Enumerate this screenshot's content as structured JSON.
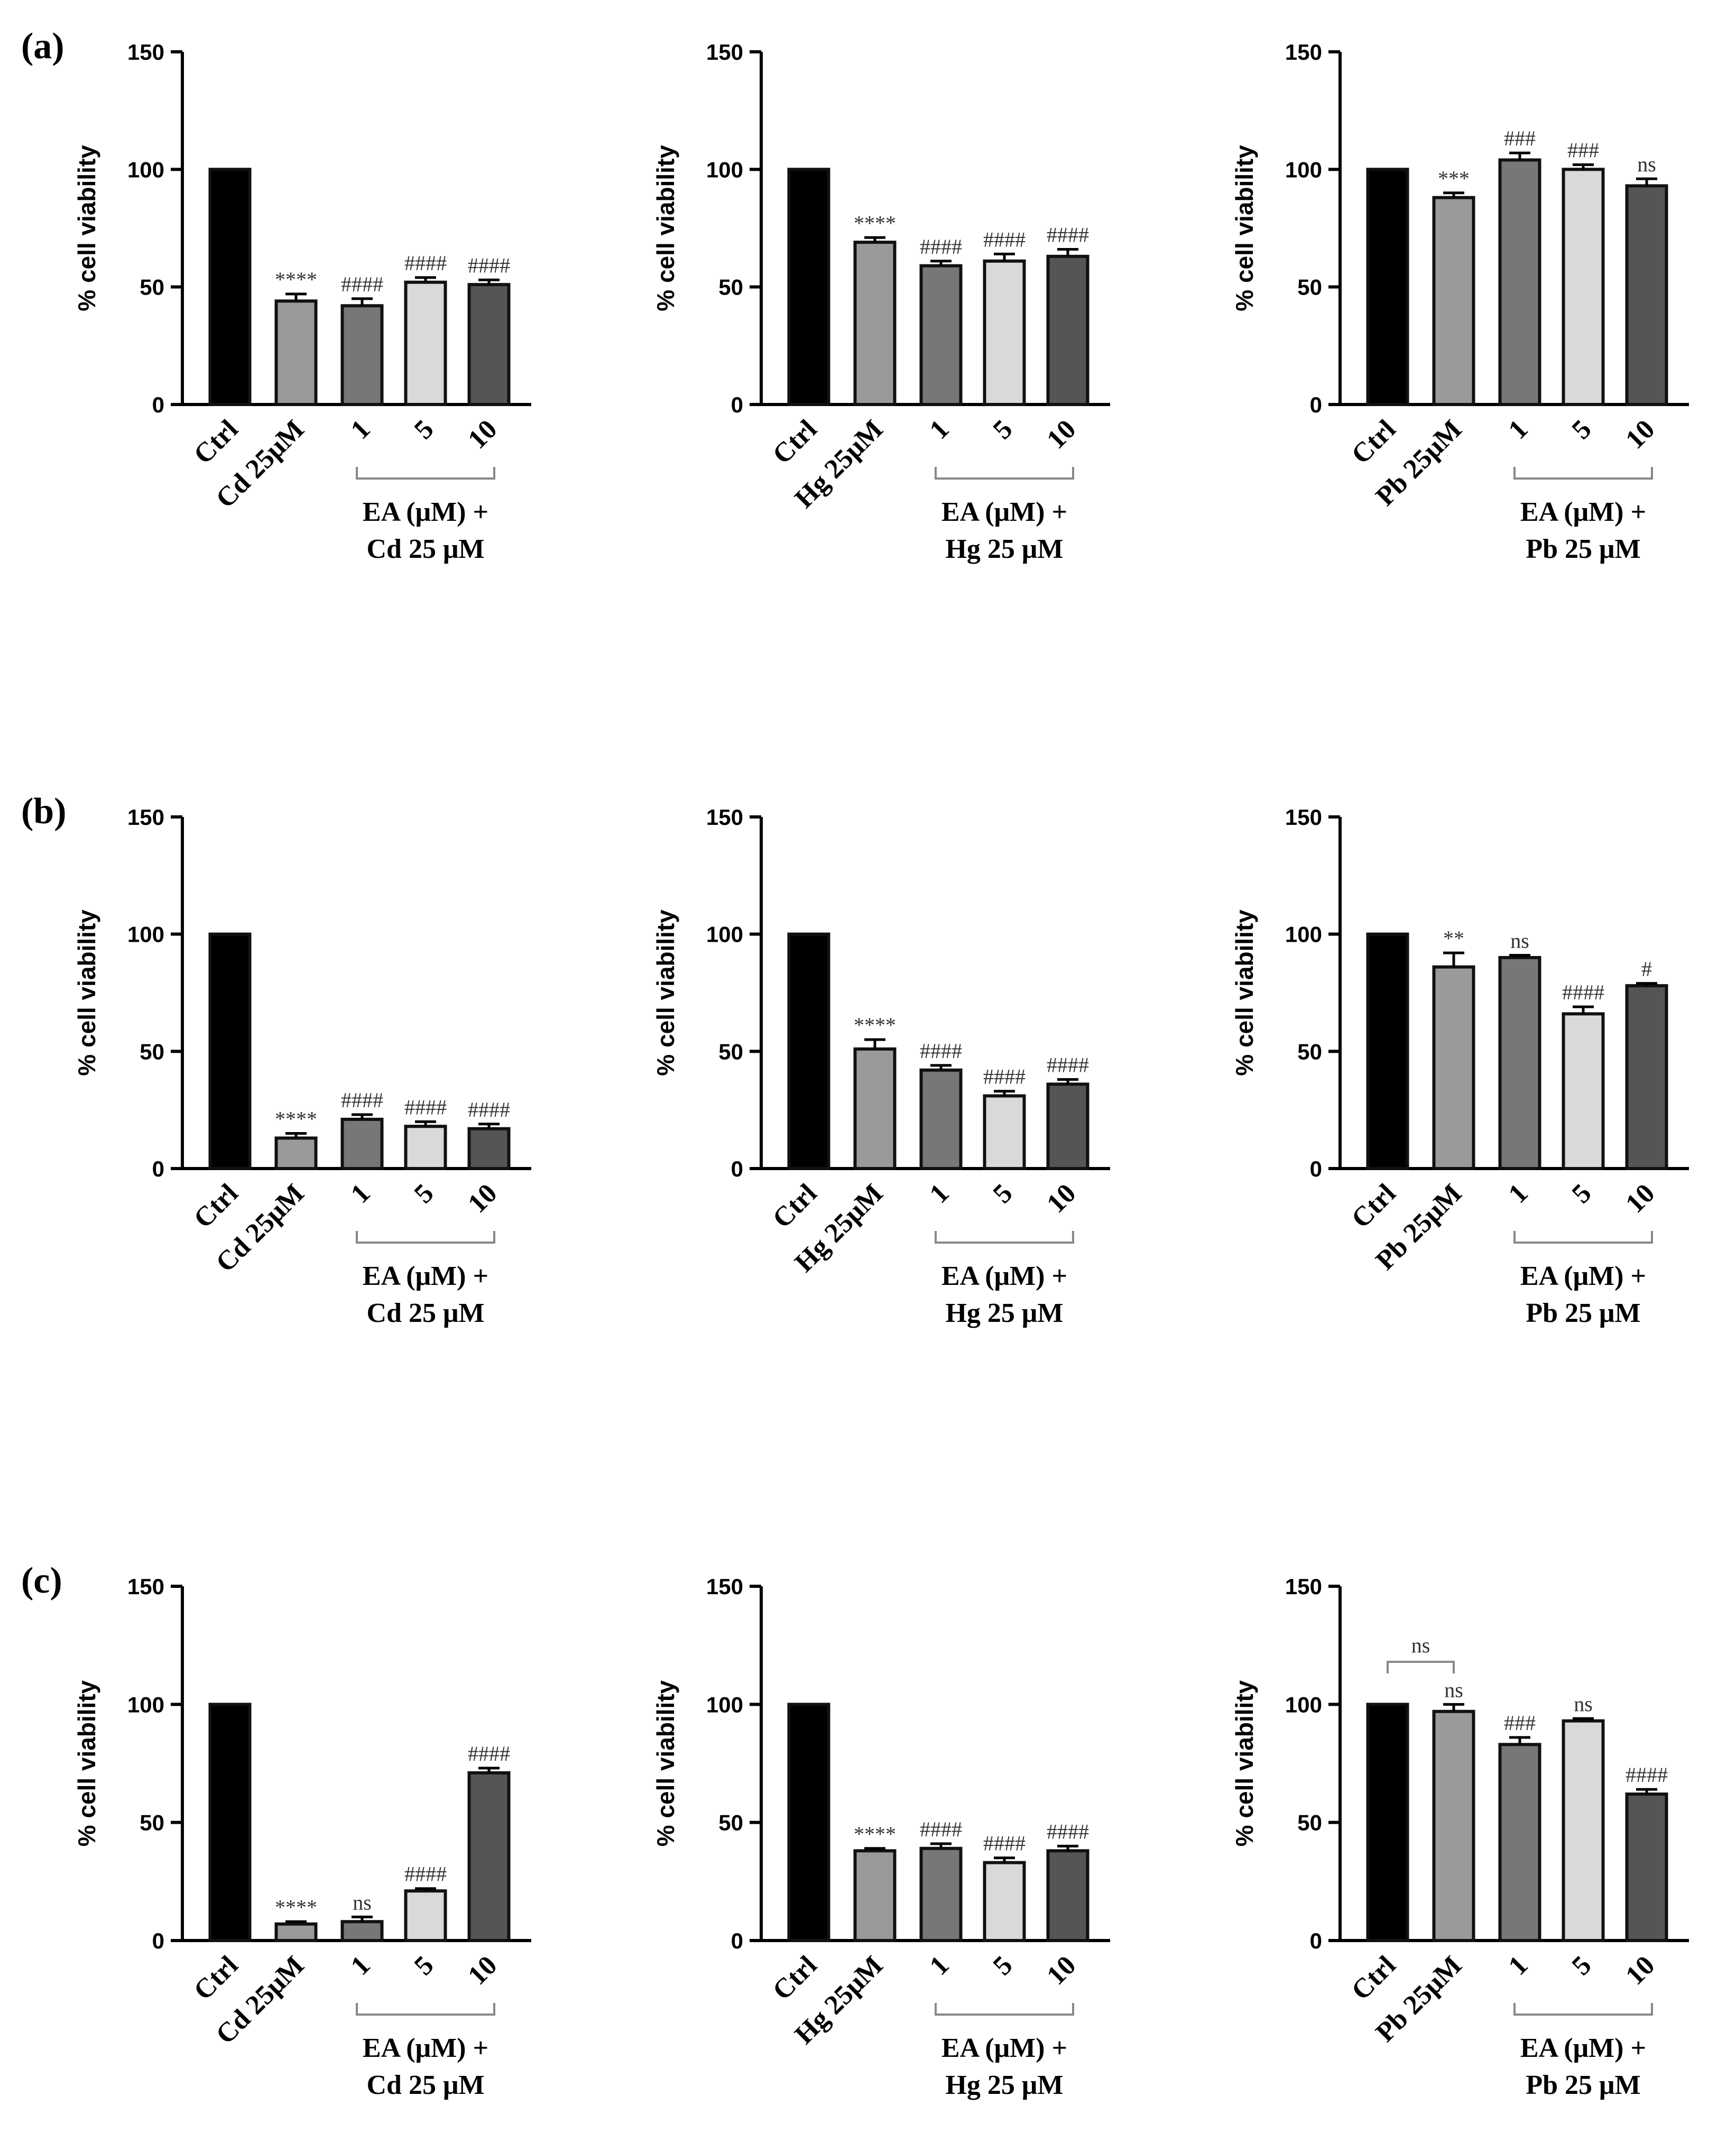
{
  "colors": {
    "ctrl": "#000000",
    "metal": "#9a9a9a",
    "ea1": "#777777",
    "ea5": "#d9d9d9",
    "ea10": "#555555",
    "outline": "#111111"
  },
  "chart_data": [
    {
      "panel": "(a)",
      "type": "bar",
      "ylabel": "% cell viability",
      "ylim": [
        0,
        150
      ],
      "yticks": [
        0,
        50,
        100,
        150
      ],
      "categories": [
        "Ctrl",
        "Cd 25μM",
        "1",
        "5",
        "10"
      ],
      "values": [
        100,
        44,
        42,
        52,
        51
      ],
      "errors": [
        0,
        3,
        3,
        2,
        2
      ],
      "annotations": [
        "",
        "****",
        "####",
        "####",
        "####"
      ],
      "group_label": [
        "EA (μM) +",
        "Cd 25 μM"
      ]
    },
    {
      "panel": "",
      "type": "bar",
      "ylabel": "% cell viability",
      "ylim": [
        0,
        150
      ],
      "yticks": [
        0,
        50,
        100,
        150
      ],
      "categories": [
        "Ctrl",
        "Hg 25μM",
        "1",
        "5",
        "10"
      ],
      "values": [
        100,
        69,
        59,
        61,
        63
      ],
      "errors": [
        0,
        2,
        2,
        3,
        3
      ],
      "annotations": [
        "",
        "****",
        "####",
        "####",
        "####"
      ],
      "group_label": [
        "EA (μM) +",
        "Hg 25 μM"
      ]
    },
    {
      "panel": "",
      "type": "bar",
      "ylabel": "% cell viability",
      "ylim": [
        0,
        150
      ],
      "yticks": [
        0,
        50,
        100,
        150
      ],
      "categories": [
        "Ctrl",
        "Pb 25μM",
        "1",
        "5",
        "10"
      ],
      "values": [
        100,
        88,
        104,
        100,
        93
      ],
      "errors": [
        0,
        2,
        3,
        2,
        3
      ],
      "annotations": [
        "",
        "***",
        "###",
        "###",
        "ns"
      ],
      "group_label": [
        "EA (μM) +",
        "Pb 25 μM"
      ]
    },
    {
      "panel": "(b)",
      "type": "bar",
      "ylabel": "% cell viability",
      "ylim": [
        0,
        150
      ],
      "yticks": [
        0,
        50,
        100,
        150
      ],
      "categories": [
        "Ctrl",
        "Cd 25μM",
        "1",
        "5",
        "10"
      ],
      "values": [
        100,
        13,
        21,
        18,
        17
      ],
      "errors": [
        0,
        2,
        2,
        2,
        2
      ],
      "annotations": [
        "",
        "****",
        "####",
        "####",
        "####"
      ],
      "group_label": [
        "EA (μM) +",
        "Cd 25 μM"
      ]
    },
    {
      "panel": "",
      "type": "bar",
      "ylabel": "% cell viability",
      "ylim": [
        0,
        150
      ],
      "yticks": [
        0,
        50,
        100,
        150
      ],
      "categories": [
        "Ctrl",
        "Hg 25μM",
        "1",
        "5",
        "10"
      ],
      "values": [
        100,
        51,
        42,
        31,
        36
      ],
      "errors": [
        0,
        4,
        2,
        2,
        2
      ],
      "annotations": [
        "",
        "****",
        "####",
        "####",
        "####"
      ],
      "group_label": [
        "EA (μM)  +",
        "Hg 25 μM"
      ]
    },
    {
      "panel": "",
      "type": "bar",
      "ylabel": "% cell viability",
      "ylim": [
        0,
        150
      ],
      "yticks": [
        0,
        50,
        100,
        150
      ],
      "categories": [
        "Ctrl",
        "Pb 25μM",
        "1",
        "5",
        "10"
      ],
      "values": [
        100,
        86,
        90,
        66,
        78
      ],
      "errors": [
        0,
        6,
        1,
        3,
        1
      ],
      "annotations": [
        "",
        "**",
        "ns",
        "####",
        "#"
      ],
      "group_label": [
        "EA (μM) +",
        "Pb 25 μM"
      ]
    },
    {
      "panel": "(c)",
      "type": "bar",
      "ylabel": "% cell viability",
      "ylim": [
        0,
        150
      ],
      "yticks": [
        0,
        50,
        100,
        150
      ],
      "categories": [
        "Ctrl",
        "Cd 25μM",
        "1",
        "5",
        "10"
      ],
      "values": [
        100,
        7,
        8,
        21,
        71
      ],
      "errors": [
        0,
        1,
        2,
        1,
        2
      ],
      "annotations": [
        "",
        "****",
        "ns",
        "####",
        "####"
      ],
      "group_label": [
        "EA (μM)  +",
        "Cd 25 μM"
      ]
    },
    {
      "panel": "",
      "type": "bar",
      "ylabel": "% cell viability",
      "ylim": [
        0,
        150
      ],
      "yticks": [
        0,
        50,
        100,
        150
      ],
      "categories": [
        "Ctrl",
        "Hg 25μM",
        "1",
        "5",
        "10"
      ],
      "values": [
        100,
        38,
        39,
        33,
        38
      ],
      "errors": [
        0,
        1,
        2,
        2,
        2
      ],
      "annotations": [
        "",
        "****",
        "####",
        "####",
        "####"
      ],
      "group_label": [
        "EA (μM) +",
        "Hg 25 μM"
      ]
    },
    {
      "panel": "",
      "type": "bar",
      "ylabel": "% cell viability",
      "ylim": [
        0,
        150
      ],
      "yticks": [
        0,
        50,
        100,
        150
      ],
      "categories": [
        "Ctrl",
        "Pb 25μM",
        "1",
        "5",
        "10"
      ],
      "values": [
        100,
        97,
        83,
        93,
        62
      ],
      "errors": [
        0,
        3,
        3,
        1,
        2
      ],
      "annotations": [
        "",
        "ns",
        "###",
        "ns",
        "####"
      ],
      "group_label": [
        "EA (μM) +",
        "Pb 25 μM"
      ],
      "bracket_annotation": "ns"
    }
  ]
}
